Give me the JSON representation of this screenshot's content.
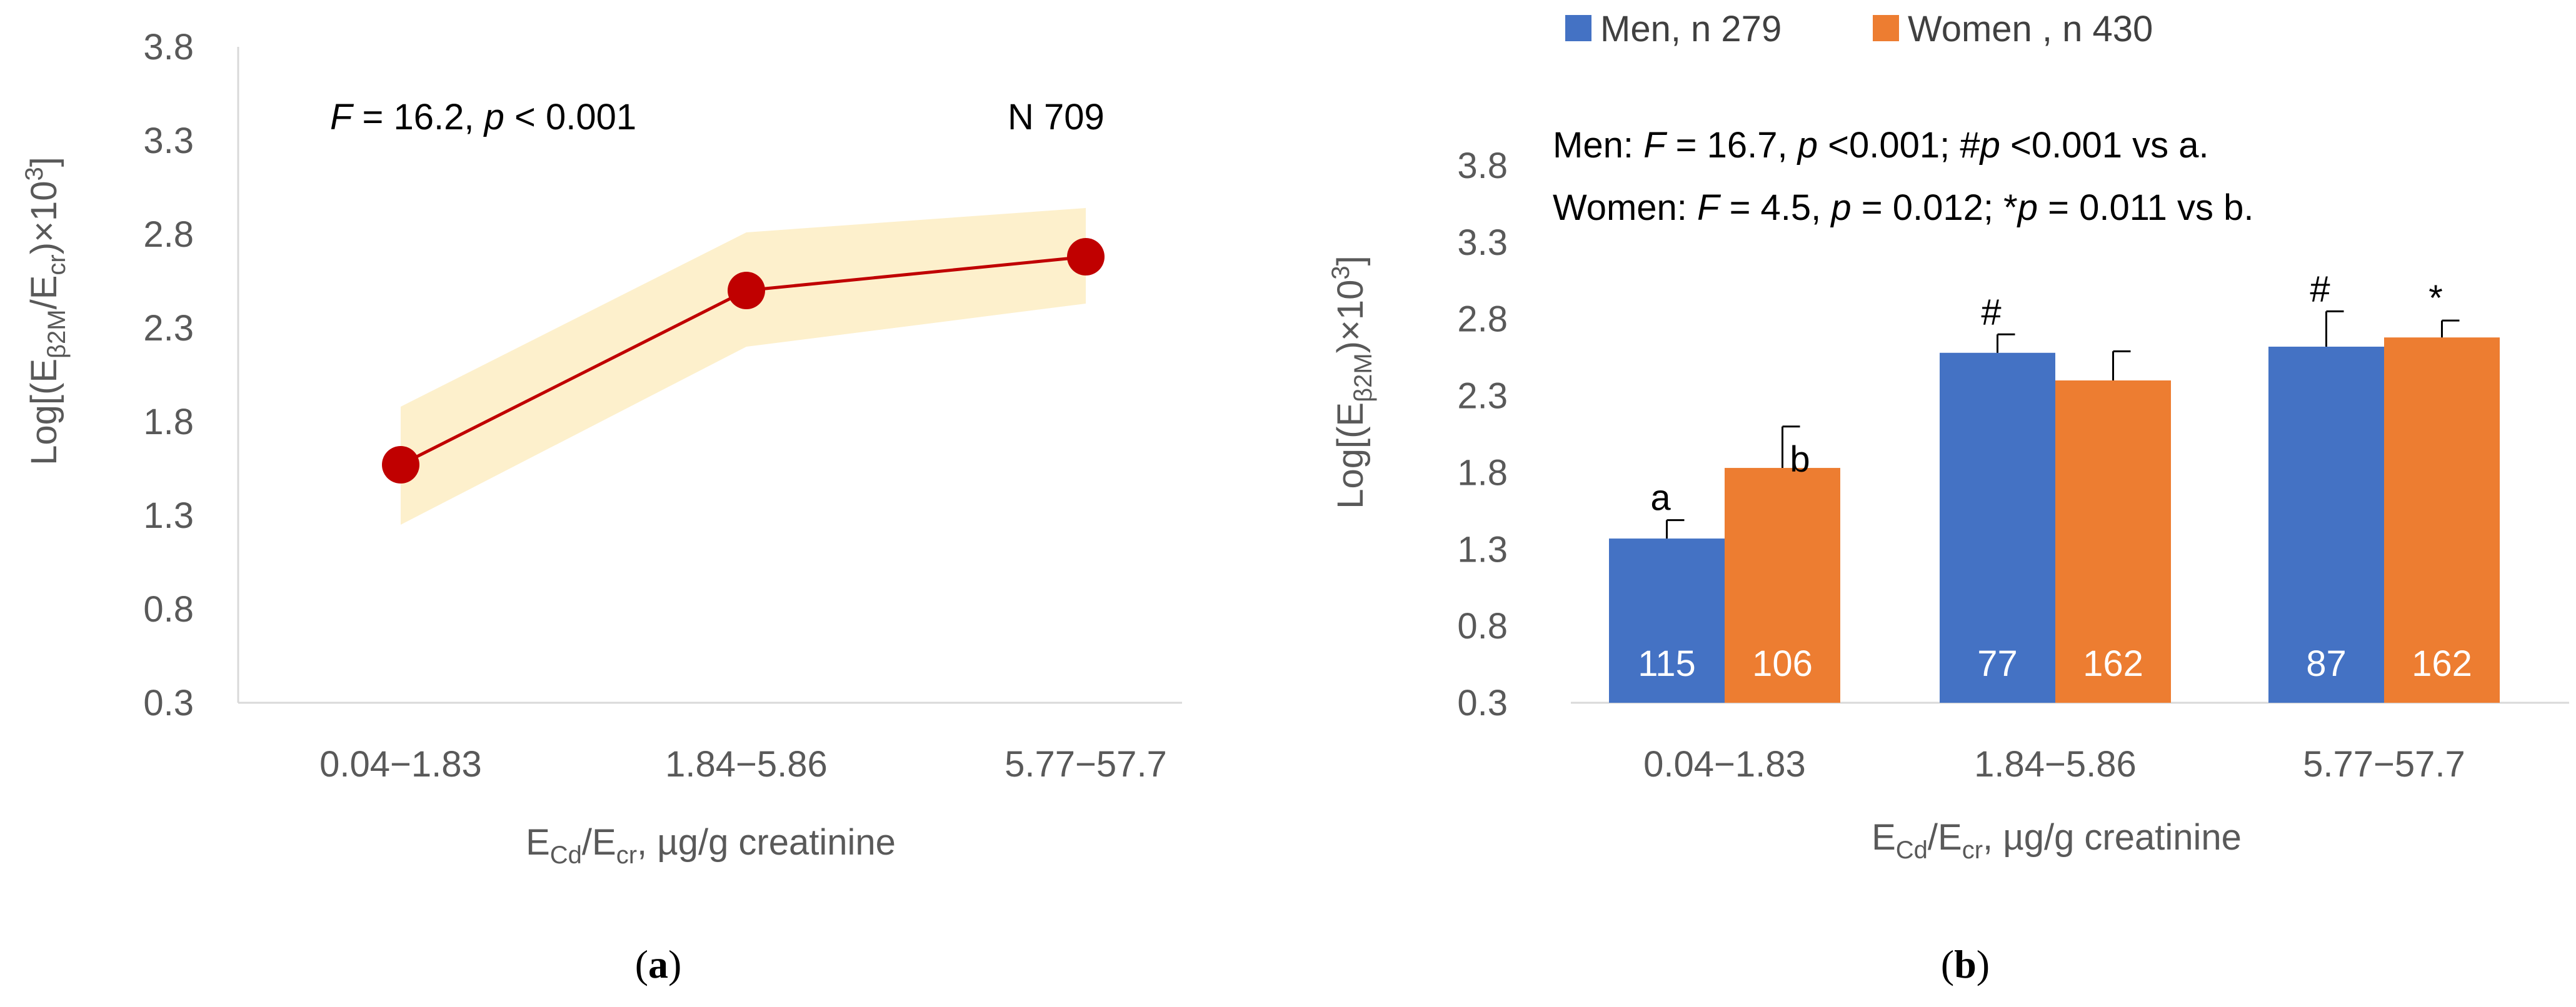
{
  "colors": {
    "line": "#c00000",
    "band": "#fdf0cc",
    "men": "#4472c4",
    "women": "#ed7d31",
    "axis": "#595959"
  },
  "chart_data": [
    {
      "type": "line",
      "panel_label": "a",
      "categories": [
        "0.04−1.83",
        "1.84−5.86",
        "5.77−57.7"
      ],
      "series": [
        {
          "name": "Log[(Eβ2M/Ecr)×10³]",
          "values": [
            1.57,
            2.5,
            2.68
          ]
        }
      ],
      "band": {
        "lower": [
          1.25,
          2.2,
          2.43
        ],
        "upper": [
          1.88,
          2.81,
          2.94
        ]
      },
      "ylabel": {
        "base": "Log[(E",
        "sub1": "β2M",
        "mid": "/E",
        "sub2": "cr",
        "tail": ")×10",
        "sup": "3",
        "end": "]"
      },
      "xlabel": {
        "base": "E",
        "sub1": "Cd",
        "mid": "/E",
        "sub2": "cr",
        "tail": ", µg/g creatinine"
      },
      "ylim": [
        0.3,
        3.8
      ],
      "yticks": [
        "3.8",
        "3.3",
        "2.8",
        "2.3",
        "1.8",
        "1.3",
        "0.8",
        "0.3"
      ],
      "annotation_left": {
        "f_italic": "F",
        "f_rest": " = 16.2, ",
        "p_italic": "p",
        "p_rest": " < 0.001"
      },
      "annotation_right": "N 709"
    },
    {
      "type": "bar",
      "panel_label": "b",
      "categories": [
        "0.04−1.83",
        "1.84−5.86",
        "5.77−57.7"
      ],
      "series": [
        {
          "name": "Men, n 279",
          "values": [
            1.37,
            2.58,
            2.62
          ],
          "error": [
            0.12,
            0.12,
            0.23
          ],
          "counts": [
            "115",
            "77",
            "87"
          ],
          "marks": [
            "a",
            "#",
            "#"
          ]
        },
        {
          "name": "Women , n 430",
          "values": [
            1.83,
            2.4,
            2.68
          ],
          "error": [
            0.27,
            0.19,
            0.11
          ],
          "counts": [
            "106",
            "162",
            "162"
          ],
          "marks": [
            "b",
            "",
            "*"
          ]
        }
      ],
      "ylabel": {
        "base": "Log[(E",
        "sub1": "β2M",
        "tail": ")×10",
        "sup": "3",
        "end": "]"
      },
      "xlabel": {
        "base": "E",
        "sub1": "Cd",
        "mid": "/E",
        "sub2": "cr",
        "tail": ", µg/g creatinine"
      },
      "ylim": [
        0.3,
        3.8
      ],
      "yticks": [
        "3.8",
        "3.3",
        "2.8",
        "2.3",
        "1.8",
        "1.3",
        "0.8",
        "0.3"
      ],
      "legend_position": "top",
      "annotation_men": {
        "lead": "Men: ",
        "f_italic": "F",
        "f_rest": " = 16.7, ",
        "p_italic": "p",
        "p_rest": " <0.001; #",
        "p2_italic": "p",
        "p2_rest": " <0.001 vs a."
      },
      "annotation_women": {
        "lead": "Women: ",
        "f_italic": "F",
        "f_rest": " = 4.5, ",
        "p_italic": "p",
        "p_rest": " = 0.012; *",
        "p2_italic": "p",
        "p2_rest": " = 0.011 vs b."
      }
    }
  ]
}
